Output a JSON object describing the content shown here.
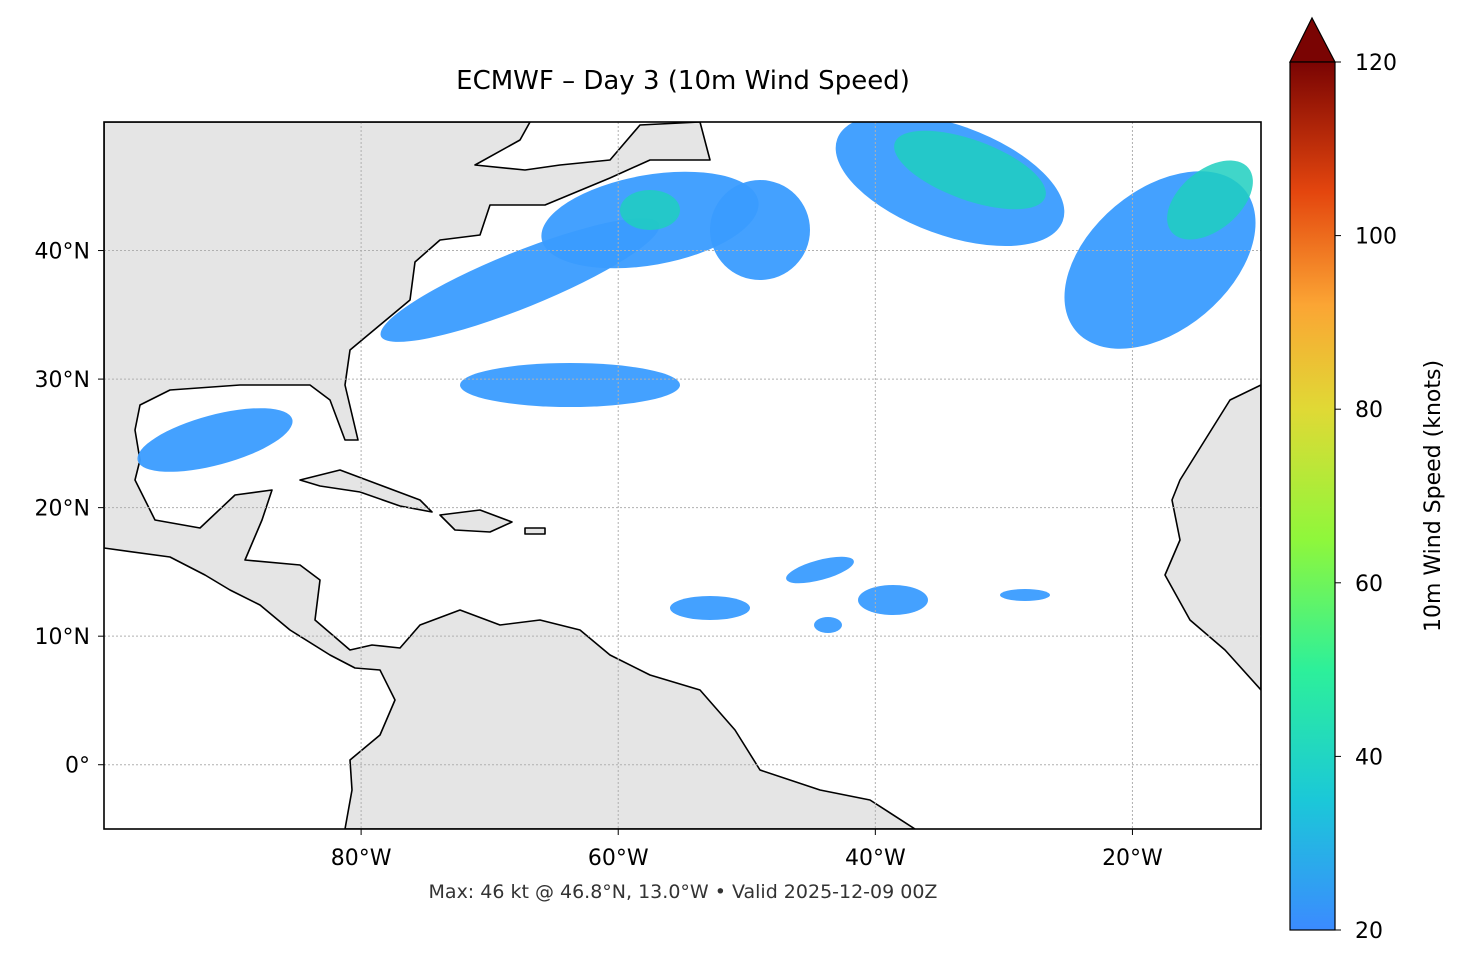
{
  "title": "ECMWF – Day 3 (10m Wind Speed)",
  "map": {
    "lon_range": [
      -100,
      -10
    ],
    "lat_range": [
      -5,
      50
    ],
    "lon_ticks": [
      {
        "value": -80,
        "label": "80°W"
      },
      {
        "value": -60,
        "label": "60°W"
      },
      {
        "value": -40,
        "label": "40°W"
      },
      {
        "value": -20,
        "label": "20°W"
      }
    ],
    "lat_ticks": [
      {
        "value": 0,
        "label": "0°"
      },
      {
        "value": 10,
        "label": "10°N"
      },
      {
        "value": 20,
        "label": "20°N"
      },
      {
        "value": 30,
        "label": "30°N"
      },
      {
        "value": 40,
        "label": "40°N"
      }
    ]
  },
  "colorbar": {
    "label": "10m Wind Speed (knots)",
    "range": [
      20,
      120
    ],
    "ticks": [
      20,
      40,
      60,
      80,
      100,
      120
    ]
  },
  "footer": "Max: 46 kt @ 46.8°N, 13.0°W • Valid 2025-12-09 00Z"
}
